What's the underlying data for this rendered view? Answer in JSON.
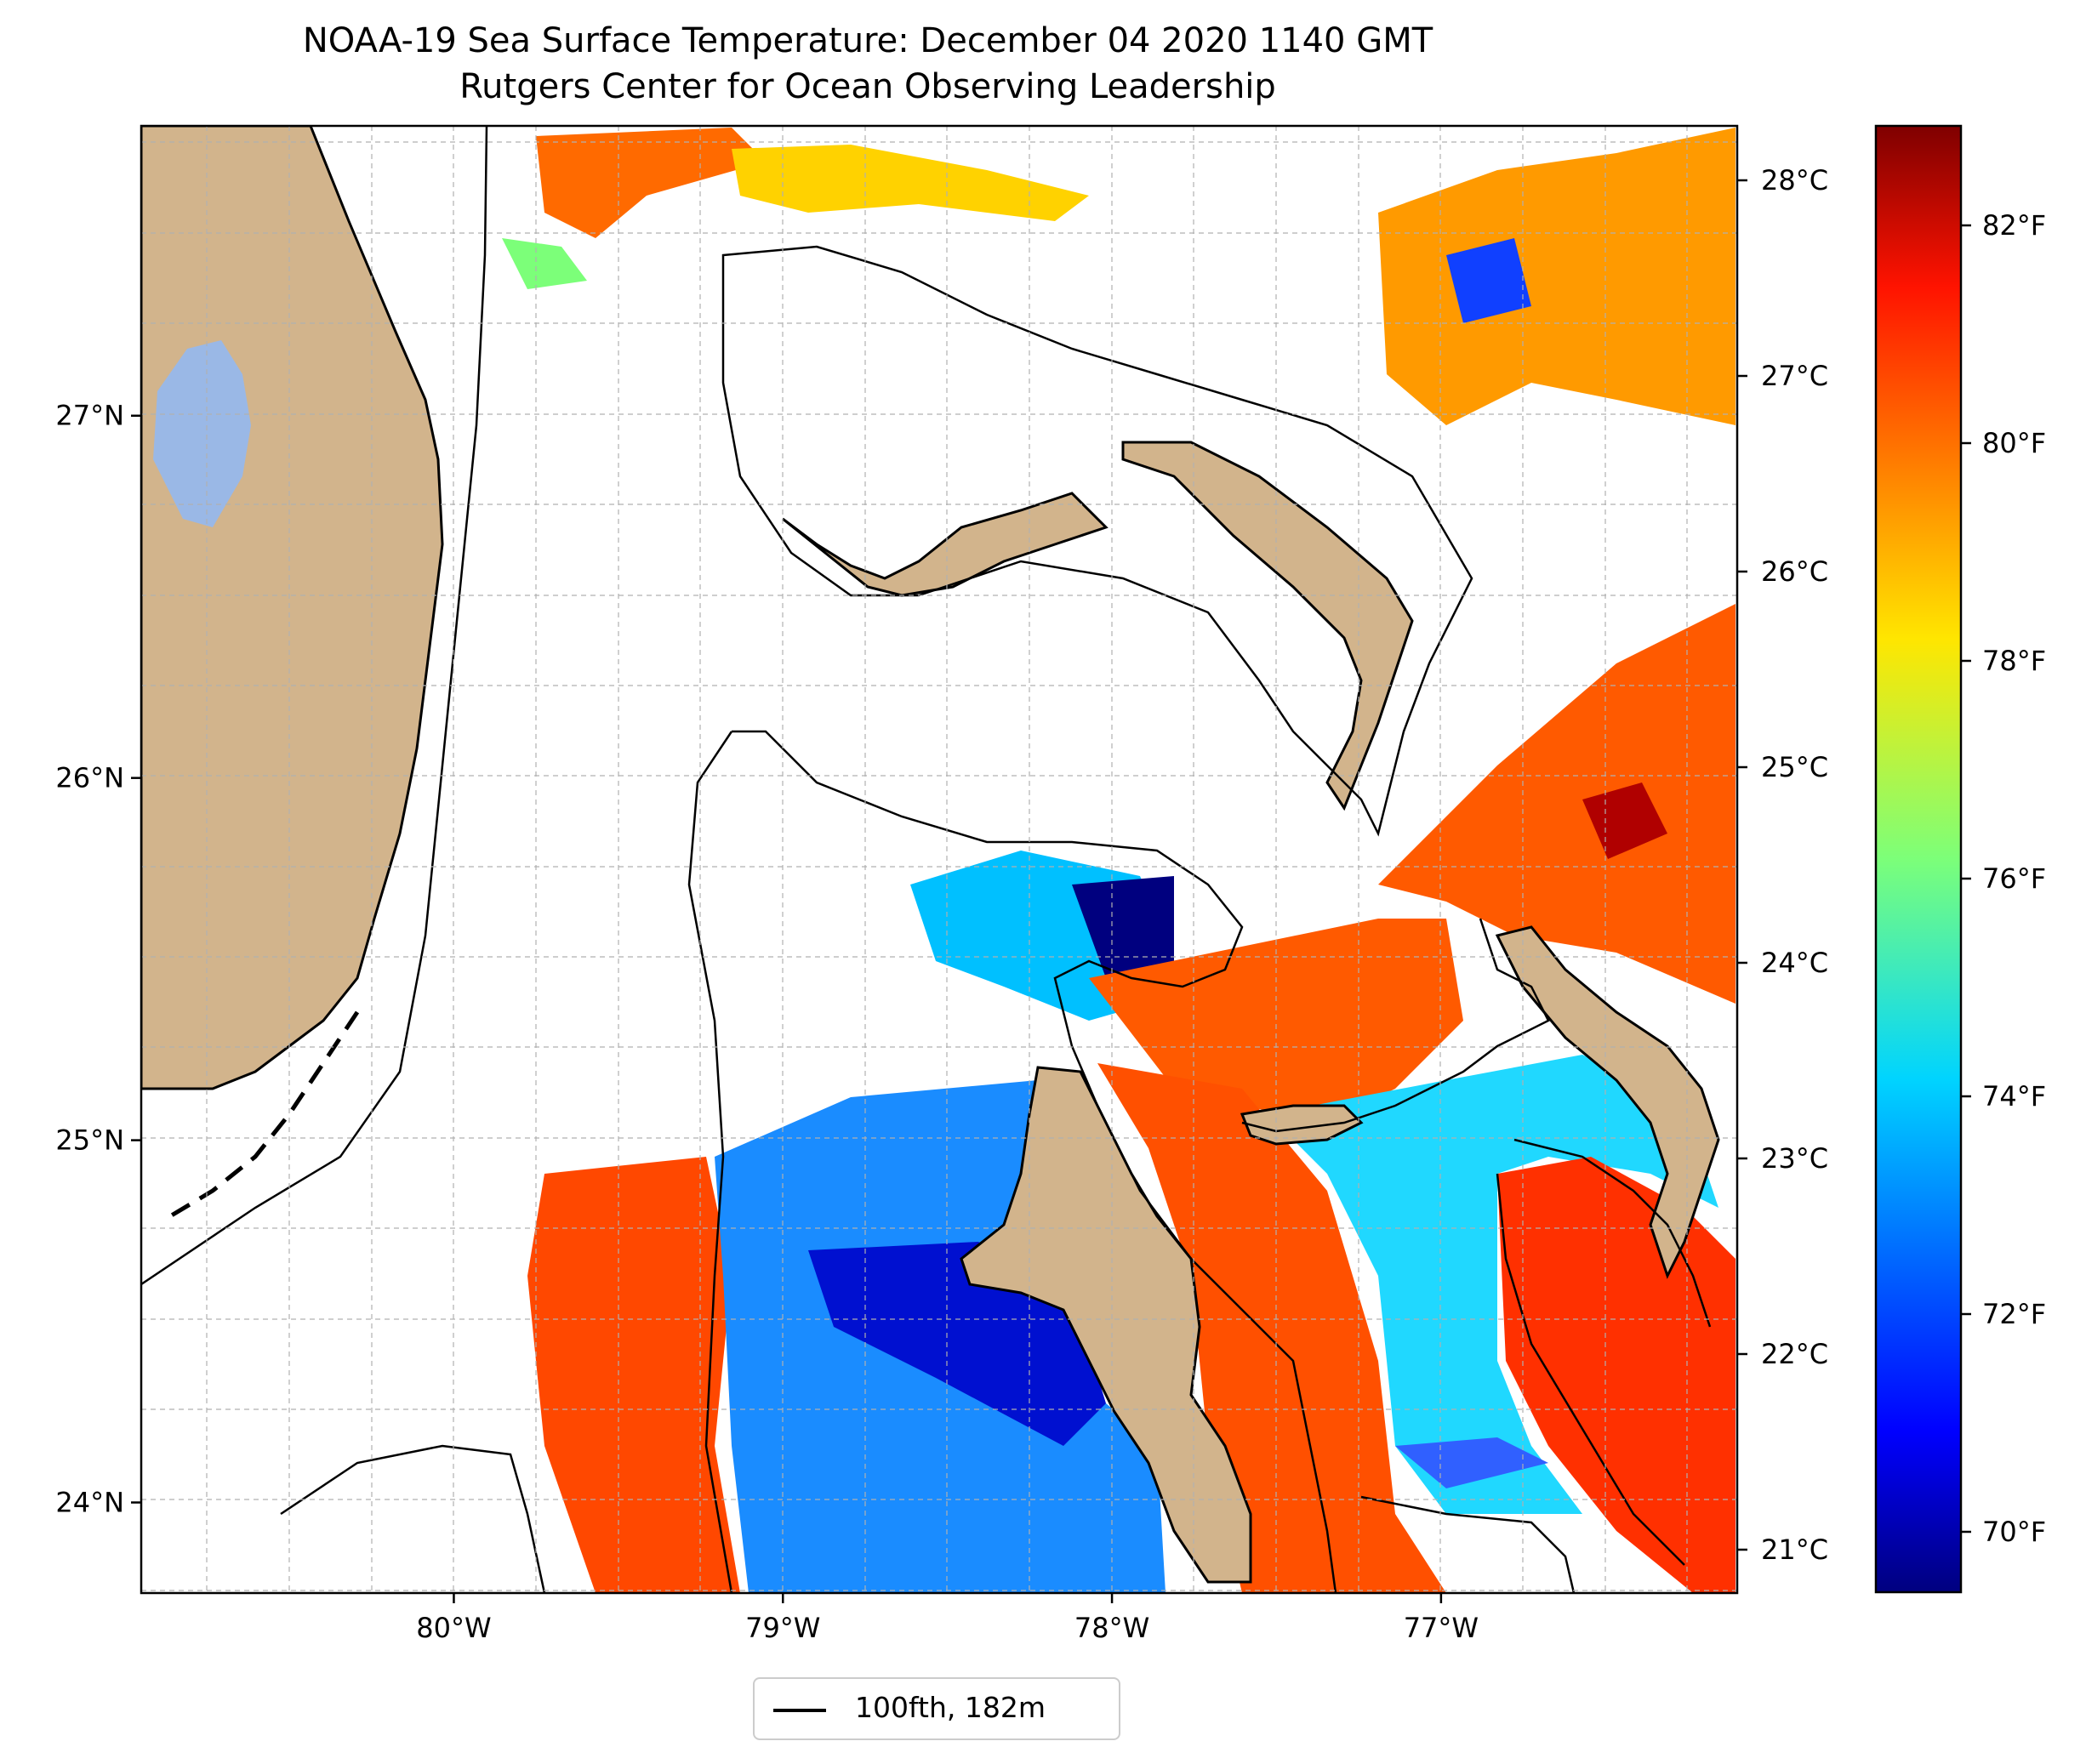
{
  "title": {
    "line1": "NOAA-19 Sea Surface Temperature: December 04 2020 1140 GMT",
    "line2": "Rutgers Center for Ocean Observing Leadership"
  },
  "map": {
    "lon_ticks": [
      {
        "value": -80,
        "label": "80°W"
      },
      {
        "value": -79,
        "label": "79°W"
      },
      {
        "value": -78,
        "label": "78°W"
      },
      {
        "value": -77,
        "label": "77°W"
      }
    ],
    "lat_ticks": [
      {
        "value": 27,
        "label": "27°N"
      },
      {
        "value": 26,
        "label": "26°N"
      },
      {
        "value": 25,
        "label": "25°N"
      },
      {
        "value": 24,
        "label": "24°N"
      }
    ],
    "extent": {
      "lon_min": -80.95,
      "lon_max": -76.1,
      "lat_min": 23.75,
      "lat_max": 27.8
    },
    "land_color": "#d2b48c",
    "lake_color": "#9ab8e6",
    "grid": true
  },
  "colorbar": {
    "colormap": "jet",
    "fahrenheit_ticks": [
      "82°F",
      "80°F",
      "78°F",
      "76°F",
      "74°F",
      "72°F",
      "70°F"
    ],
    "celsius_ticks": [
      "28°C",
      "27°C",
      "26°C",
      "25°C",
      "24°C",
      "23°C",
      "22°C",
      "21°C"
    ]
  },
  "legend": {
    "label": "100fth, 182m"
  }
}
